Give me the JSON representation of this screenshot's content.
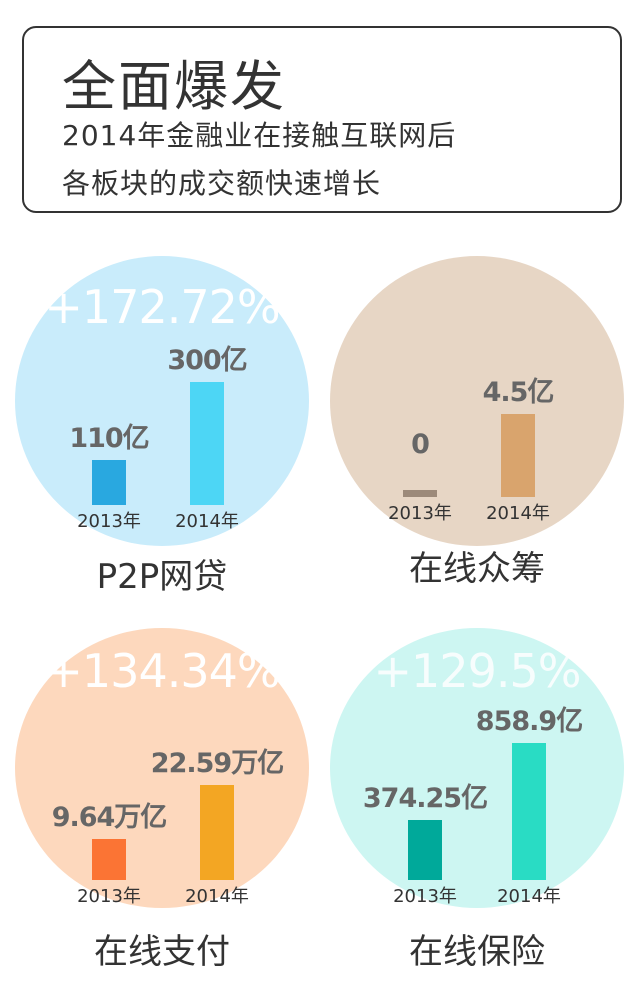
{
  "header": {
    "title": "全面爆发",
    "subtitle_line1": "2014年金融业在接触互联网后",
    "subtitle_line2": "各板块的成交额快速增长"
  },
  "chart_data": [
    {
      "type": "bar",
      "title": "P2P网贷",
      "growth": "+172.72%",
      "categories": [
        "2013年",
        "2014年"
      ],
      "values": [
        110,
        300
      ],
      "labels": [
        "110亿",
        "300亿"
      ],
      "unit": "亿",
      "circle_color": "#c9ecfb",
      "bar_colors": [
        "#29a8e0",
        "#4dd6f5"
      ],
      "pct_opacity": 1
    },
    {
      "type": "bar",
      "title": "在线众筹",
      "growth": "",
      "categories": [
        "2013年",
        "2014年"
      ],
      "values": [
        0,
        4.5
      ],
      "labels": [
        "0",
        "4.5亿"
      ],
      "unit": "亿",
      "circle_color": "#e7d6c5",
      "bar_colors": [
        "#9c8a7a",
        "#d9a46d"
      ],
      "pct_opacity": 1
    },
    {
      "type": "bar",
      "title": "在线支付",
      "growth": "+134.34%",
      "categories": [
        "2013年",
        "2014年"
      ],
      "values": [
        9.64,
        22.59
      ],
      "labels": [
        "9.64万亿",
        "22.59万亿"
      ],
      "unit": "万亿",
      "circle_color": "#fdd8bd",
      "bar_colors": [
        "#fb7434",
        "#f3a623"
      ],
      "pct_opacity": 1
    },
    {
      "type": "bar",
      "title": "在线保险",
      "growth": "+129.5%",
      "categories": [
        "2013年",
        "2014年"
      ],
      "values": [
        374.25,
        858.9
      ],
      "labels": [
        "374.25亿",
        "858.9亿"
      ],
      "unit": "亿",
      "circle_color": "#cdf6f2",
      "bar_colors": [
        "#00a99a",
        "#29dcc4"
      ],
      "pct_opacity": 0.85
    }
  ]
}
